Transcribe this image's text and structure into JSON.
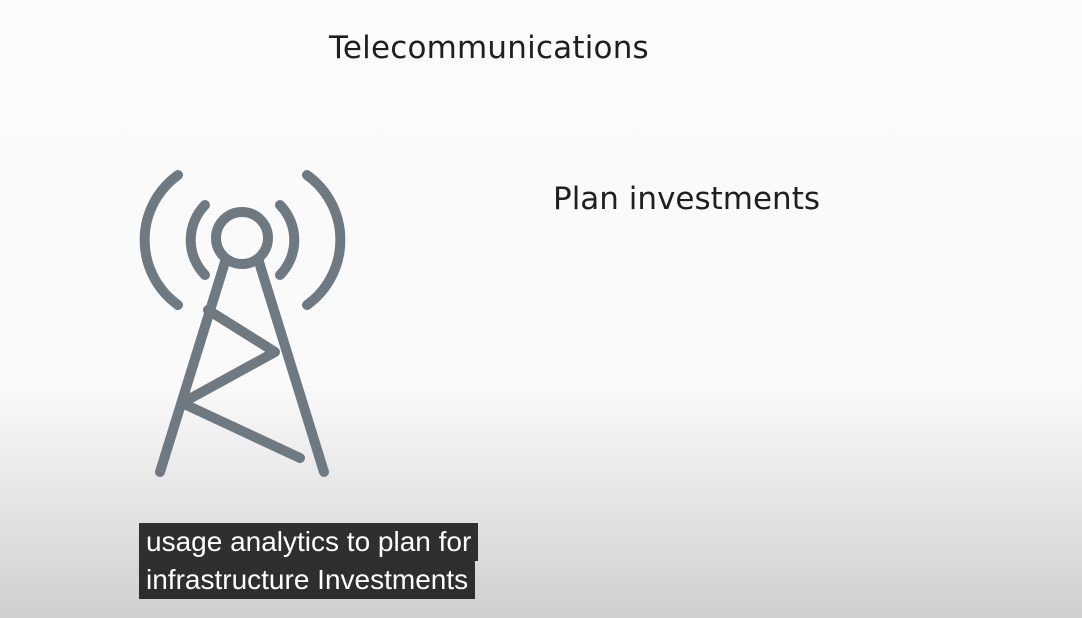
{
  "slide": {
    "title": "Telecommunications",
    "subtitle": "Plan investments",
    "icon": "cell-tower-icon",
    "icon_color": "#6f7982"
  },
  "captions": {
    "line1": "usage analytics to plan for",
    "line2": "infrastructure Investments"
  }
}
